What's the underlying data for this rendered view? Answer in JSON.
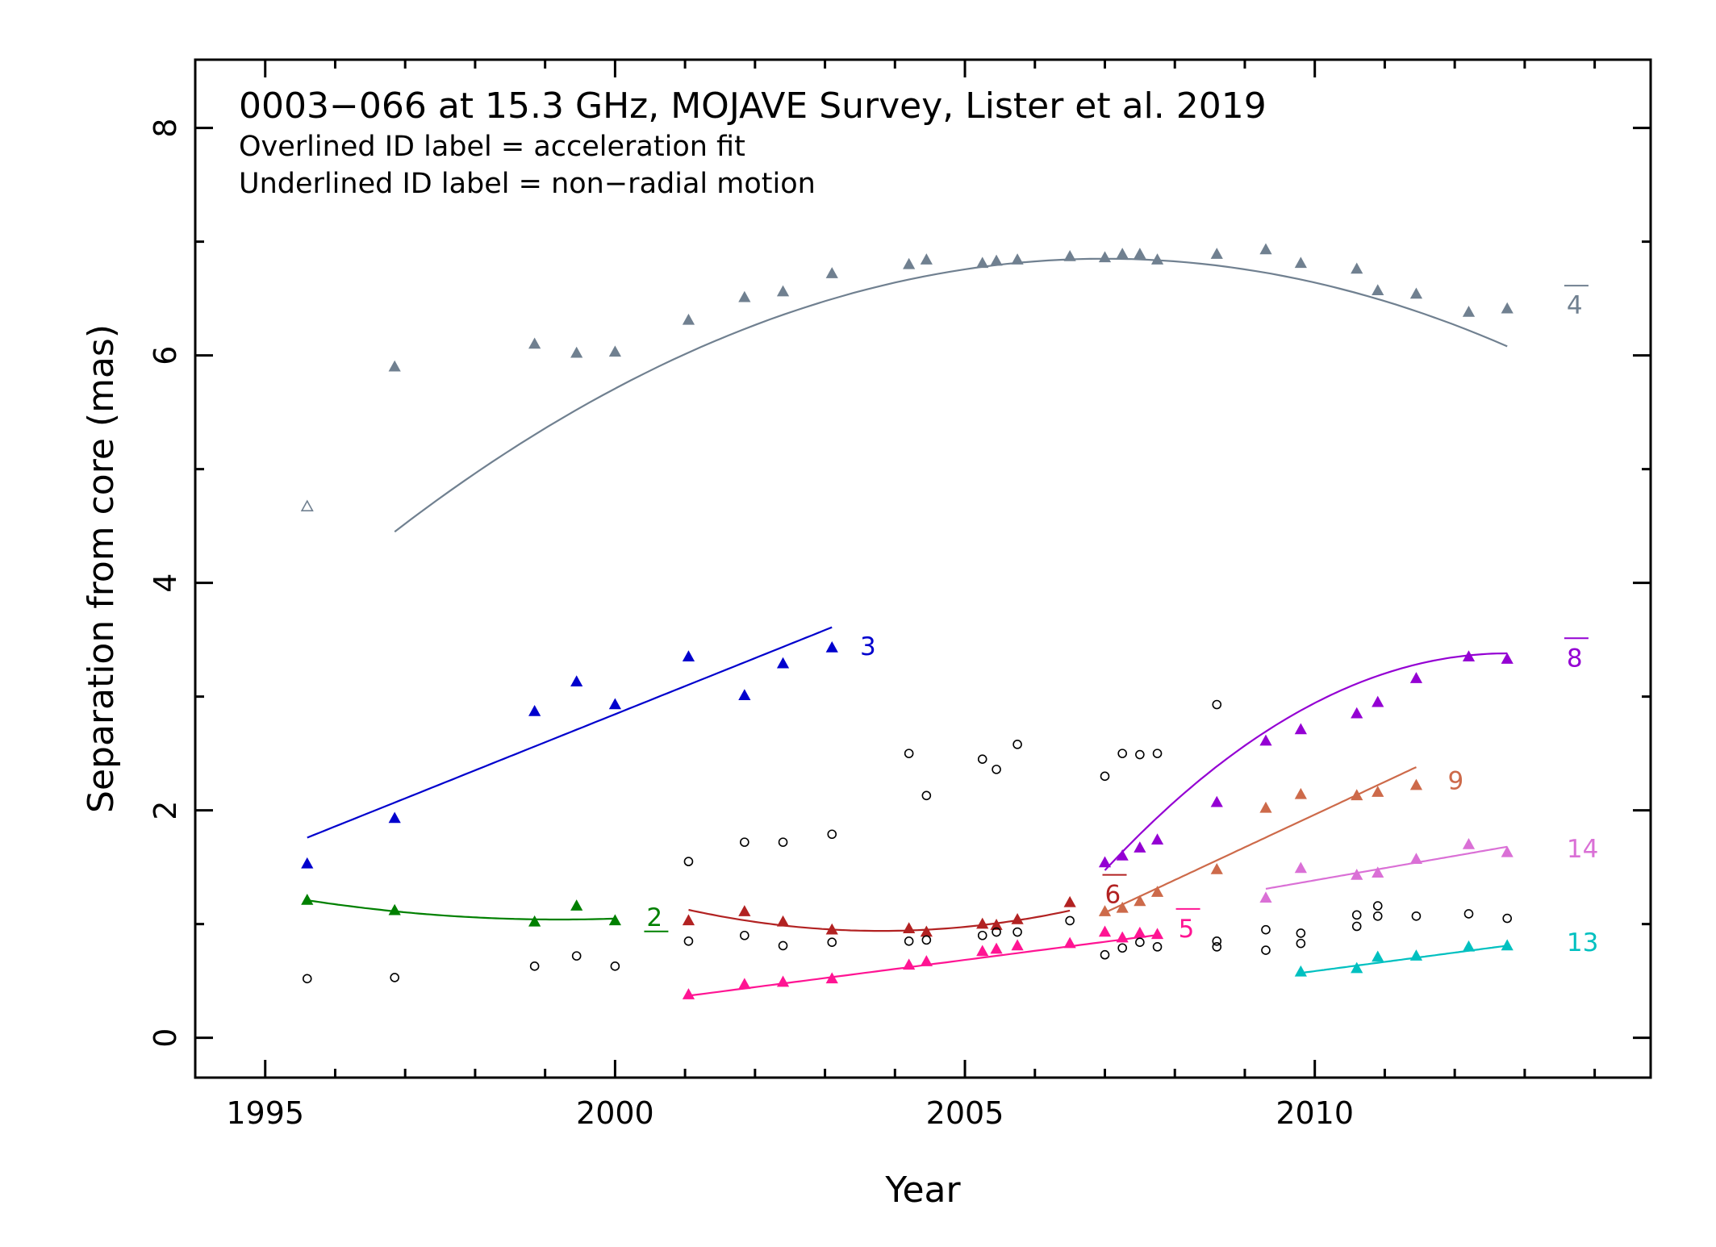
{
  "chart_data": {
    "type": "scatter",
    "title": "0003−066 at 15.3 GHz, MOJAVE Survey, Lister et al. 2019",
    "subtitle_lines": [
      "Overlined ID label = acceleration fit",
      "Underlined ID label = non−radial motion"
    ],
    "xlabel": "Year",
    "ylabel": "Separation from core (mas)",
    "xlim": [
      1994.0,
      2014.8
    ],
    "ylim": [
      -0.35,
      8.6
    ],
    "xticks": [
      1995,
      2000,
      2005,
      2010
    ],
    "yticks": [
      0,
      2,
      4,
      6,
      8
    ],
    "grid": false,
    "components": [
      {
        "id": "4",
        "label_style": "overline",
        "color": "#708090",
        "label_pos": [
          2013.6,
          6.45
        ],
        "points": [
          [
            1996.85,
            5.9
          ],
          [
            1998.85,
            6.1
          ],
          [
            1999.45,
            6.02
          ],
          [
            2000.0,
            6.03
          ],
          [
            2001.05,
            6.31
          ],
          [
            2001.85,
            6.51
          ],
          [
            2002.4,
            6.56
          ],
          [
            2003.1,
            6.72
          ],
          [
            2004.2,
            6.8
          ],
          [
            2004.45,
            6.84
          ],
          [
            2005.25,
            6.81
          ],
          [
            2005.45,
            6.83
          ],
          [
            2005.75,
            6.84
          ],
          [
            2006.5,
            6.87
          ],
          [
            2007.0,
            6.86
          ],
          [
            2007.25,
            6.89
          ],
          [
            2007.5,
            6.89
          ],
          [
            2007.75,
            6.84
          ],
          [
            2008.6,
            6.89
          ],
          [
            2009.3,
            6.93
          ],
          [
            2009.8,
            6.81
          ],
          [
            2010.6,
            6.76
          ],
          [
            2010.9,
            6.57
          ],
          [
            2011.45,
            6.54
          ],
          [
            2012.2,
            6.38
          ],
          [
            2012.75,
            6.41
          ]
        ],
        "fit": {
          "kind": "quadratic",
          "x0": 2007.0,
          "a": 6.85,
          "b": 0.0,
          "c": -0.0233,
          "xrange": [
            1996.85,
            2012.75
          ]
        }
      },
      {
        "id": "3",
        "label_style": "plain",
        "color": "#0000cd",
        "label_pos": [
          2003.5,
          3.45
        ],
        "points": [
          [
            1995.6,
            1.53
          ],
          [
            1996.85,
            1.93
          ],
          [
            1998.85,
            2.87
          ],
          [
            1999.45,
            3.13
          ],
          [
            2000.0,
            2.93
          ],
          [
            2001.05,
            3.35
          ],
          [
            2001.85,
            3.01
          ],
          [
            2002.4,
            3.29
          ],
          [
            2003.1,
            3.43
          ]
        ],
        "fit": {
          "kind": "linear",
          "x0": 1995.6,
          "a": 1.76,
          "b": 0.2466,
          "xrange": [
            1995.6,
            2003.1
          ]
        }
      },
      {
        "id": "2",
        "label_style": "underline",
        "color": "#008000",
        "label_pos": [
          2000.45,
          1.07
        ],
        "points": [
          [
            1995.6,
            1.21
          ],
          [
            1996.85,
            1.12
          ],
          [
            1998.85,
            1.02
          ],
          [
            1999.45,
            1.16
          ],
          [
            2000.0,
            1.03
          ]
        ],
        "fit": {
          "kind": "quadratic",
          "x0": 1999.2,
          "a": 1.04,
          "b": 0.0,
          "c": 0.0131,
          "xrange": [
            1995.6,
            2000.0
          ]
        }
      },
      {
        "id": "6",
        "label_style": "overline",
        "color": "#b22222",
        "label_pos": [
          2007.0,
          1.27
        ],
        "points": [
          [
            2001.05,
            1.03
          ],
          [
            2001.85,
            1.11
          ],
          [
            2002.4,
            1.02
          ],
          [
            2003.1,
            0.95
          ],
          [
            2004.2,
            0.96
          ],
          [
            2004.45,
            0.93
          ],
          [
            2005.25,
            1.0
          ],
          [
            2005.45,
            0.99
          ],
          [
            2005.75,
            1.04
          ],
          [
            2006.5,
            1.19
          ]
        ],
        "fit": {
          "kind": "quadratic",
          "x0": 2003.8,
          "a": 0.94,
          "b": 0.0,
          "c": 0.0245,
          "xrange": [
            2001.05,
            2006.5
          ]
        }
      },
      {
        "id": "5",
        "label_style": "overline",
        "color": "#ff1493",
        "label_pos": [
          2008.05,
          0.97
        ],
        "points": [
          [
            2001.05,
            0.38
          ],
          [
            2001.85,
            0.47
          ],
          [
            2002.4,
            0.49
          ],
          [
            2003.1,
            0.52
          ],
          [
            2004.2,
            0.64
          ],
          [
            2004.45,
            0.67
          ],
          [
            2005.25,
            0.76
          ],
          [
            2005.45,
            0.78
          ],
          [
            2005.75,
            0.81
          ],
          [
            2006.5,
            0.83
          ],
          [
            2007.0,
            0.93
          ],
          [
            2007.25,
            0.88
          ],
          [
            2007.5,
            0.92
          ],
          [
            2007.75,
            0.91
          ]
        ],
        "fit": {
          "kind": "linear",
          "x0": 2001.05,
          "a": 0.37,
          "b": 0.0797,
          "xrange": [
            2001.05,
            2007.75
          ]
        }
      },
      {
        "id": "8",
        "label_style": "overline",
        "color": "#9400d3",
        "label_pos": [
          2013.6,
          3.35
        ],
        "points": [
          [
            2007.0,
            1.54
          ],
          [
            2007.25,
            1.6
          ],
          [
            2007.5,
            1.67
          ],
          [
            2007.75,
            1.74
          ],
          [
            2008.6,
            2.07
          ],
          [
            2009.3,
            2.61
          ],
          [
            2009.8,
            2.71
          ],
          [
            2010.6,
            2.85
          ],
          [
            2010.9,
            2.95
          ],
          [
            2011.45,
            3.16
          ],
          [
            2012.2,
            3.35
          ],
          [
            2012.75,
            3.33
          ]
        ],
        "fit": {
          "kind": "quadratic",
          "x0": 2012.75,
          "a": 3.38,
          "b": 0.0,
          "c": -0.0577,
          "xrange": [
            2007.0,
            2012.75
          ]
        }
      },
      {
        "id": "9",
        "label_style": "plain",
        "color": "#cd6a4a",
        "label_pos": [
          2011.9,
          2.27
        ],
        "points": [
          [
            2007.0,
            1.11
          ],
          [
            2007.25,
            1.14
          ],
          [
            2007.5,
            1.2
          ],
          [
            2007.75,
            1.28
          ],
          [
            2008.6,
            1.48
          ],
          [
            2009.3,
            2.02
          ],
          [
            2009.8,
            2.14
          ],
          [
            2010.6,
            2.13
          ],
          [
            2010.9,
            2.16
          ],
          [
            2011.45,
            2.22
          ]
        ],
        "fit": {
          "kind": "linear",
          "x0": 2007.0,
          "a": 1.1,
          "b": 0.2876,
          "xrange": [
            2007.0,
            2011.45
          ]
        }
      },
      {
        "id": "14",
        "label_style": "plain",
        "color": "#da70d6",
        "label_pos": [
          2013.6,
          1.67
        ],
        "points": [
          [
            2009.3,
            1.23
          ],
          [
            2009.8,
            1.49
          ],
          [
            2010.6,
            1.43
          ],
          [
            2010.9,
            1.45
          ],
          [
            2011.45,
            1.57
          ],
          [
            2012.2,
            1.7
          ],
          [
            2012.75,
            1.63
          ]
        ],
        "fit": {
          "kind": "linear",
          "x0": 2009.3,
          "a": 1.31,
          "b": 0.1072,
          "xrange": [
            2009.3,
            2012.75
          ]
        }
      },
      {
        "id": "13",
        "label_style": "plain",
        "color": "#00c0c0",
        "label_pos": [
          2013.6,
          0.85
        ],
        "points": [
          [
            2009.8,
            0.58
          ],
          [
            2010.6,
            0.61
          ],
          [
            2010.9,
            0.71
          ],
          [
            2011.45,
            0.72
          ],
          [
            2012.2,
            0.8
          ],
          [
            2012.75,
            0.81
          ]
        ],
        "fit": {
          "kind": "linear",
          "x0": 2009.8,
          "a": 0.57,
          "b": 0.0814,
          "xrange": [
            2009.8,
            2012.75
          ]
        }
      }
    ],
    "open_triangle_points": [
      {
        "color": "#708090",
        "points": [
          [
            1995.6,
            4.67
          ]
        ]
      }
    ],
    "open_circle_points": [
      [
        1995.6,
        0.52
      ],
      [
        1996.85,
        0.53
      ],
      [
        1998.85,
        0.63
      ],
      [
        1999.45,
        0.72
      ],
      [
        2000.0,
        0.63
      ],
      [
        2001.05,
        1.55
      ],
      [
        2001.05,
        0.85
      ],
      [
        2001.85,
        1.72
      ],
      [
        2001.85,
        0.9
      ],
      [
        2002.4,
        1.72
      ],
      [
        2002.4,
        0.81
      ],
      [
        2003.1,
        1.79
      ],
      [
        2003.1,
        0.84
      ],
      [
        2004.2,
        2.5
      ],
      [
        2004.2,
        0.85
      ],
      [
        2004.45,
        2.13
      ],
      [
        2004.45,
        0.86
      ],
      [
        2005.25,
        2.45
      ],
      [
        2005.25,
        0.9
      ],
      [
        2005.45,
        2.36
      ],
      [
        2005.45,
        0.93
      ],
      [
        2005.75,
        2.58
      ],
      [
        2005.75,
        0.93
      ],
      [
        2006.5,
        1.03
      ],
      [
        2007.0,
        2.3
      ],
      [
        2007.0,
        0.73
      ],
      [
        2007.25,
        2.5
      ],
      [
        2007.25,
        0.79
      ],
      [
        2007.5,
        2.49
      ],
      [
        2007.5,
        0.84
      ],
      [
        2007.75,
        2.5
      ],
      [
        2007.75,
        0.8
      ],
      [
        2008.6,
        2.93
      ],
      [
        2008.6,
        0.8
      ],
      [
        2008.6,
        0.85
      ],
      [
        2009.3,
        0.95
      ],
      [
        2009.3,
        0.77
      ],
      [
        2009.8,
        0.92
      ],
      [
        2009.8,
        0.83
      ],
      [
        2010.6,
        1.08
      ],
      [
        2010.6,
        0.98
      ],
      [
        2010.9,
        1.16
      ],
      [
        2010.9,
        1.07
      ],
      [
        2011.45,
        1.07
      ],
      [
        2012.2,
        1.09
      ],
      [
        2012.75,
        1.05
      ]
    ]
  }
}
